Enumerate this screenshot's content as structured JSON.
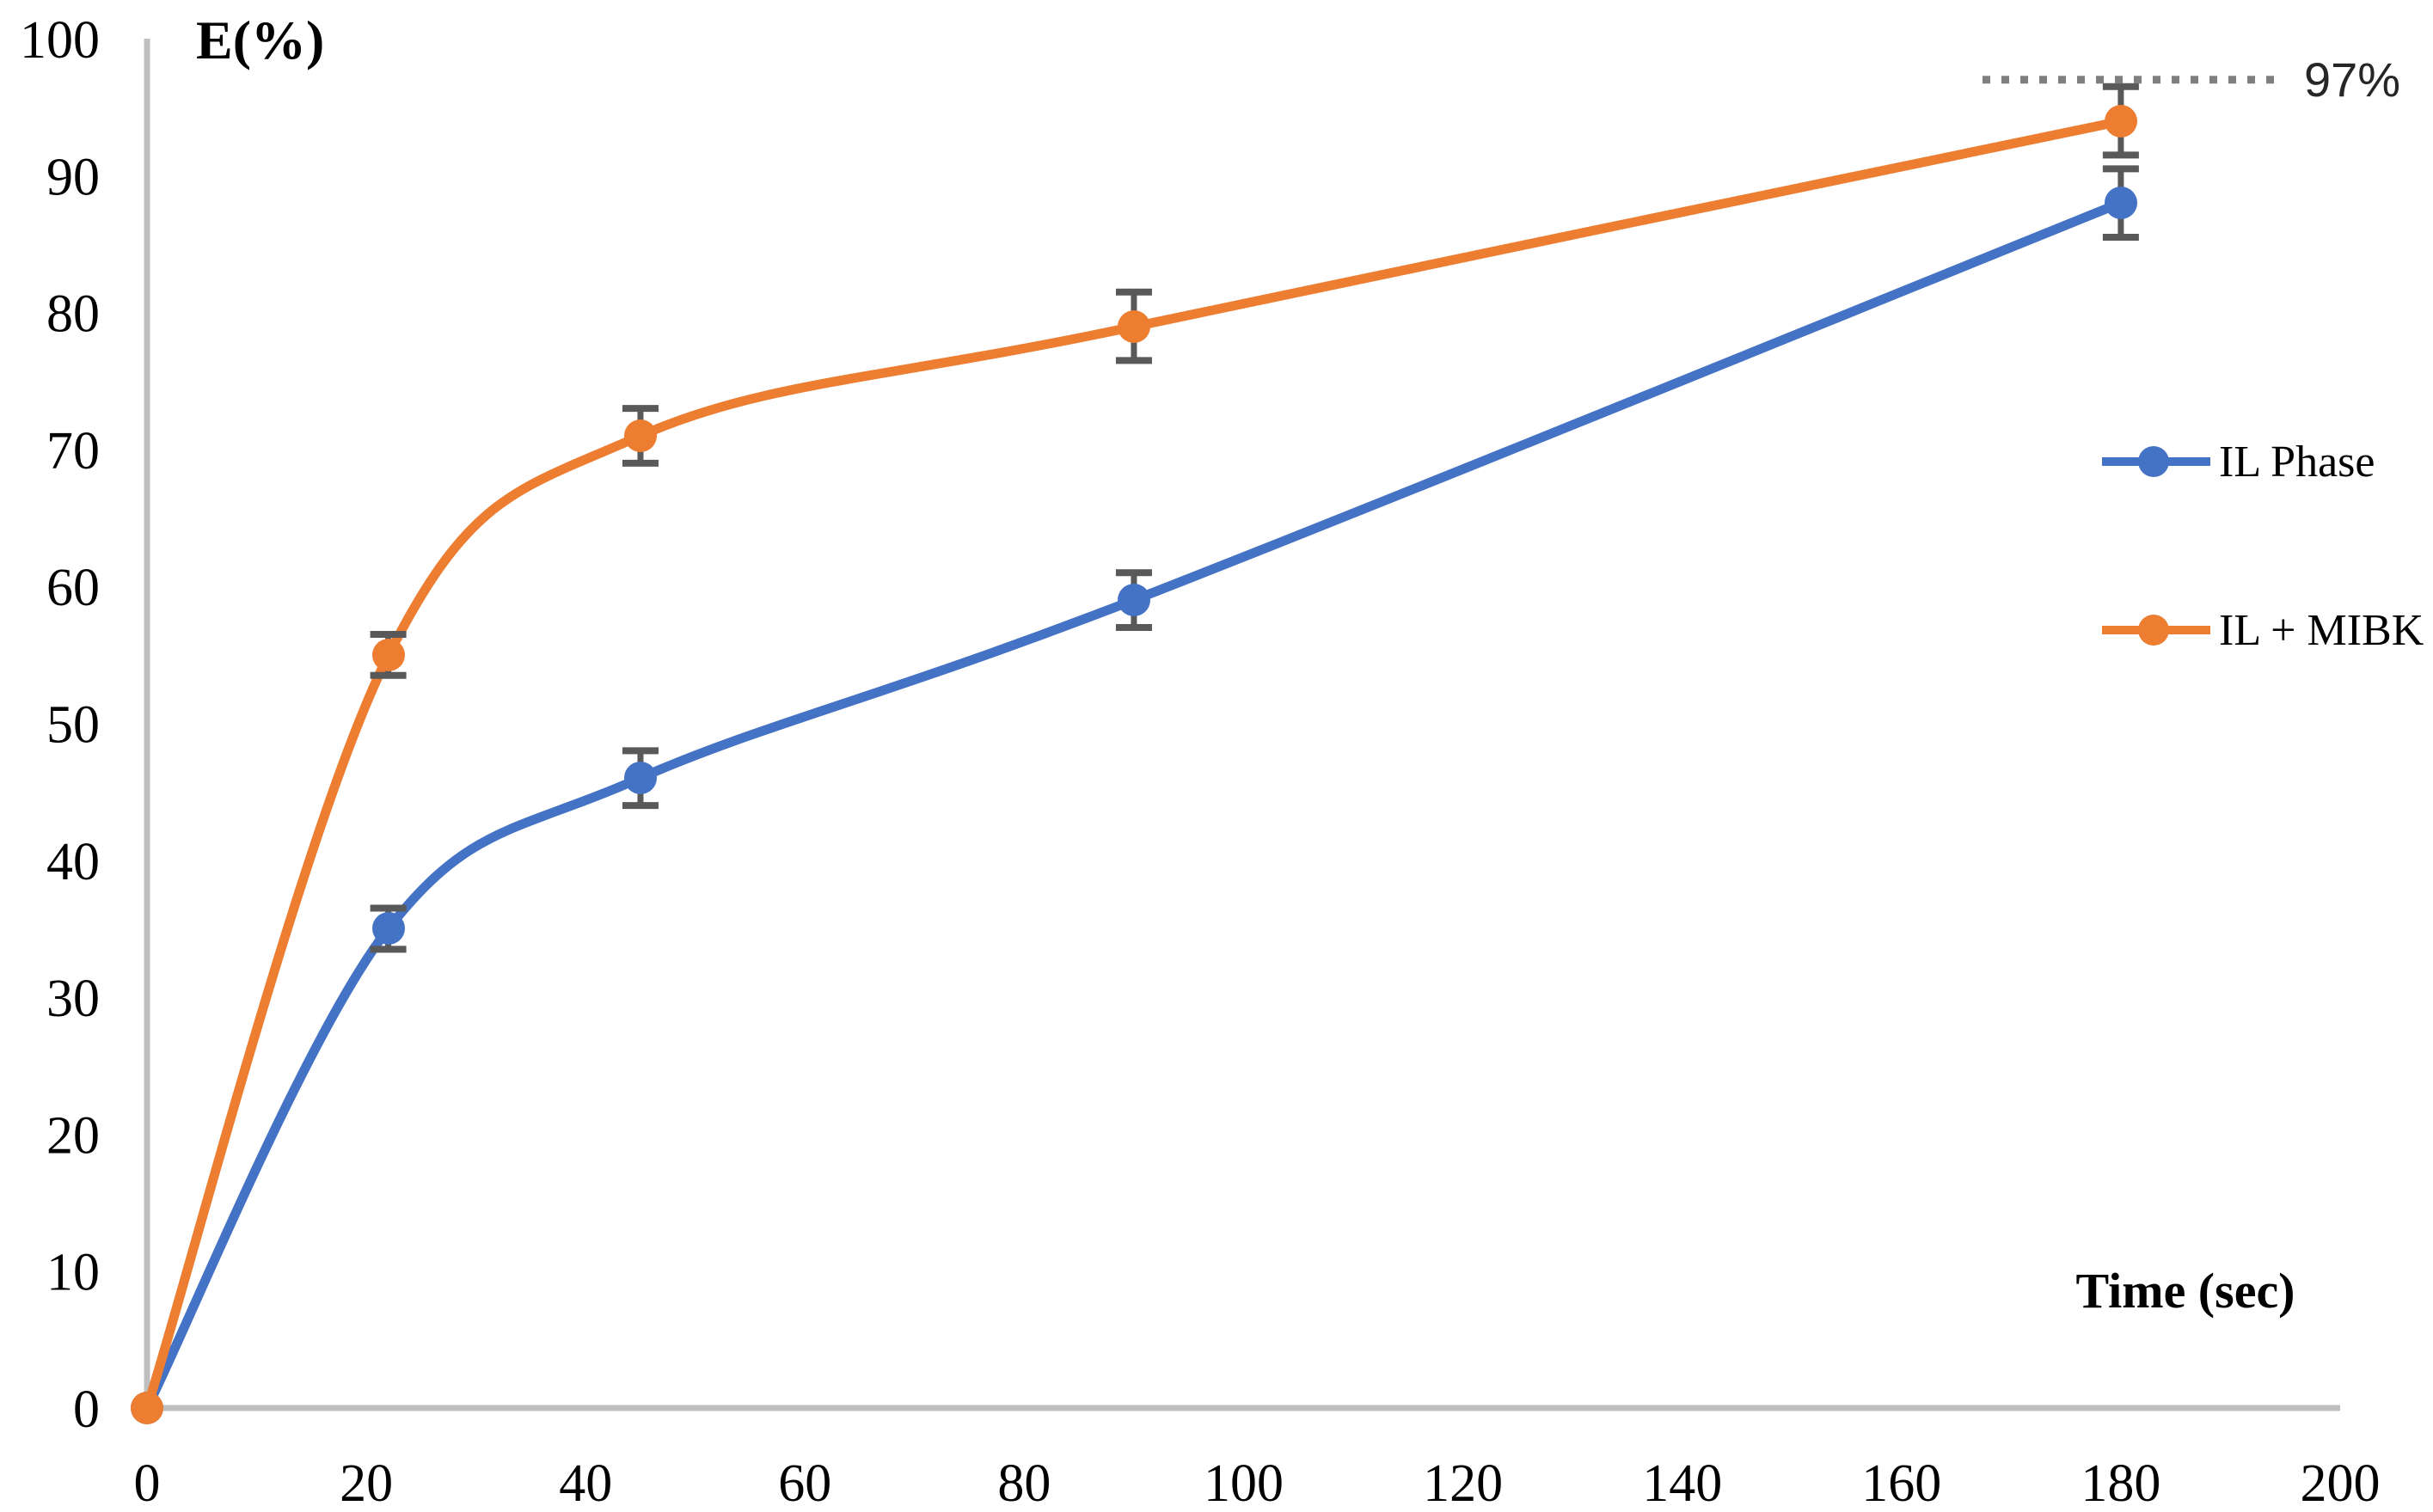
{
  "chart_data": {
    "type": "line",
    "ylabel": "E(%)",
    "xlabel": "Time (sec)",
    "xlim": [
      0,
      200
    ],
    "ylim": [
      0,
      100
    ],
    "xticks": [
      0,
      20,
      40,
      60,
      80,
      100,
      120,
      140,
      160,
      180,
      200
    ],
    "yticks": [
      0,
      10,
      20,
      30,
      40,
      50,
      60,
      70,
      80,
      90,
      100
    ],
    "grid": false,
    "legend_position": "right",
    "series": [
      {
        "name": "IL Phase",
        "color": "#4472C4",
        "marker": "circle",
        "smooth": true,
        "x": [
          0,
          22,
          45,
          90,
          180
        ],
        "y": [
          0,
          35,
          46,
          59,
          88
        ],
        "yerr": [
          0,
          1.5,
          2,
          2,
          2.5
        ]
      },
      {
        "name": "IL + MIBK",
        "color": "#ED7D31",
        "marker": "circle",
        "smooth": true,
        "x": [
          0,
          22,
          45,
          90,
          180
        ],
        "y": [
          0,
          55,
          71,
          79,
          94
        ],
        "yerr": [
          0,
          1.5,
          2,
          2.5,
          2.5
        ]
      }
    ],
    "annotation": {
      "label": "97%",
      "value": 97,
      "line_style": "dotted",
      "line_color": "#7F7F7F",
      "text_color": "#262626"
    }
  },
  "style": {
    "background": "#FFFFFF",
    "axis_color": "#BFBFBF",
    "error_bar_color": "#595959",
    "tick_label_color": "#000000"
  }
}
